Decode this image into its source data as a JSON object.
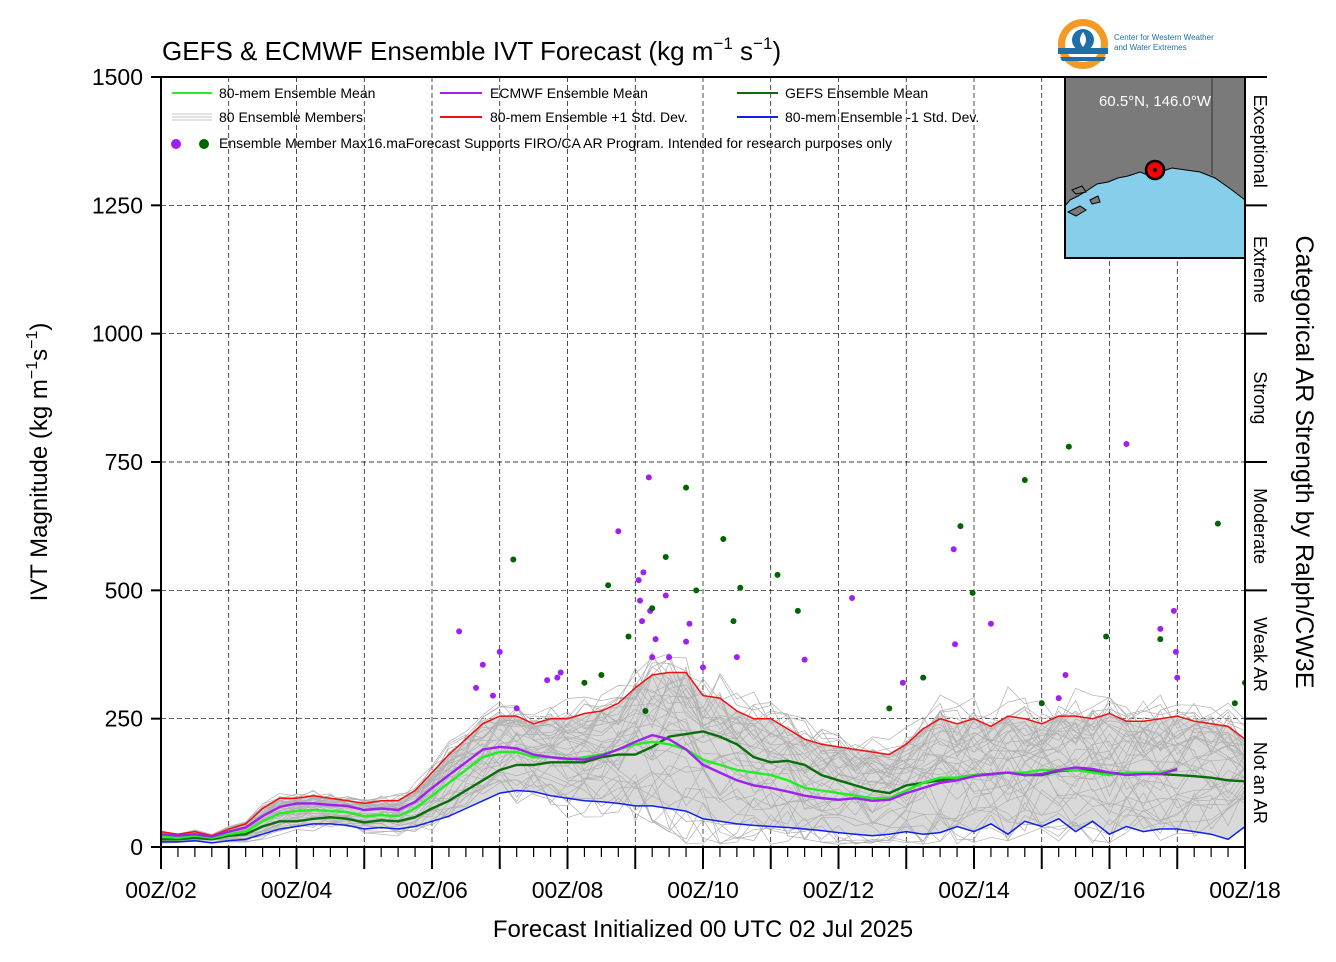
{
  "chart_data": {
    "type": "line",
    "title_main": "GEFS & ECMWF Ensemble IVT Forecast (kg m",
    "title_sup1": "−1",
    "title_mid": " s",
    "title_sup2": "−1",
    "title_end": ")",
    "ylabel_main": "IVT Magnitude (kg m",
    "ylabel_sup1": "−1",
    "ylabel_mid": "s",
    "ylabel_sup2": "−1",
    "ylabel_end": ")",
    "xlabel": "Forecast Initialized 00 UTC 02 Jul 2025",
    "right_label": "Categorical AR Strength by Ralph/CW3E",
    "ylim": [
      0,
      1500
    ],
    "xlim_days": [
      2,
      18
    ],
    "y_ticks": [
      0,
      250,
      500,
      750,
      1000,
      1250,
      1500
    ],
    "x_tick_labels": [
      "00Z/02",
      "00Z/04",
      "00Z/06",
      "00Z/08",
      "00Z/10",
      "00Z/12",
      "00Z/14",
      "00Z/16",
      "00Z/18"
    ],
    "x_tick_days": [
      2,
      4,
      6,
      8,
      10,
      12,
      14,
      16,
      18
    ],
    "grid": true,
    "legend_position": "top-left",
    "legend": {
      "ens_mean": "80-mem Ensemble Mean",
      "ecmwf_mean": "ECMWF Ensemble Mean",
      "gefs_mean": "GEFS Ensemble Mean",
      "members": "80 Ensemble Members",
      "plus_std": "80-mem Ensemble +1 Std. Dev.",
      "minus_std": "80-mem Ensemble -1 Std. Dev.",
      "max_note": "Ensemble Member Max16.maForecast Supports FIRO/CA AR Program. Intended for research purposes only"
    },
    "categories_ar": [
      {
        "label": "Not an AR",
        "range": [
          0,
          250
        ]
      },
      {
        "label": "Weak AR",
        "range": [
          250,
          500
        ]
      },
      {
        "label": "Moderate",
        "range": [
          500,
          750
        ]
      },
      {
        "label": "Strong",
        "range": [
          750,
          1000
        ]
      },
      {
        "label": "Extreme",
        "range": [
          1000,
          1250
        ]
      },
      {
        "label": "Exceptional",
        "range": [
          1250,
          1500
        ]
      }
    ],
    "location": "60.5°N, 146.0°W",
    "logo_text_1": "Center for Western Weather",
    "logo_text_2": "and Water Extremes",
    "colors": {
      "ens_mean": "#22ee22",
      "ecmwf_mean": "#a020f0",
      "gefs_mean": "#0a6e0a",
      "plus_std": "#ee1111",
      "minus_std": "#1020ee",
      "members": "#b0b0b0",
      "spread_fill": "#d9d9d9",
      "ecmwf_max": "#a020f0",
      "gefs_max": "#006400",
      "map_land": "#7a7a7a",
      "map_ocean": "#87ceeb"
    },
    "series": [
      {
        "name": "80-mem Ensemble +1 Std. Dev.",
        "key": "plus_std",
        "x": [
          2.0,
          2.25,
          2.5,
          2.75,
          3.0,
          3.25,
          3.5,
          3.75,
          4.0,
          4.25,
          4.5,
          4.75,
          5.0,
          5.25,
          5.5,
          5.75,
          6.0,
          6.25,
          6.5,
          6.75,
          7.0,
          7.25,
          7.5,
          7.75,
          8.0,
          8.25,
          8.5,
          8.75,
          9.0,
          9.25,
          9.5,
          9.75,
          10.0,
          10.25,
          10.5,
          10.75,
          11.0,
          11.25,
          11.5,
          11.75,
          12.0,
          12.25,
          12.5,
          12.75,
          13.0,
          13.25,
          13.5,
          13.75,
          14.0,
          14.25,
          14.5,
          14.75,
          15.0,
          15.25,
          15.5,
          15.75,
          16.0,
          16.25,
          16.5,
          16.75,
          17.0,
          17.25,
          17.5,
          17.75,
          18.0
        ],
        "y": [
          30,
          25,
          30,
          22,
          35,
          45,
          75,
          95,
          95,
          100,
          95,
          90,
          85,
          90,
          90,
          110,
          145,
          180,
          210,
          240,
          255,
          255,
          240,
          250,
          250,
          260,
          265,
          280,
          310,
          335,
          340,
          340,
          295,
          290,
          265,
          250,
          250,
          230,
          210,
          200,
          195,
          190,
          185,
          180,
          200,
          230,
          250,
          240,
          250,
          235,
          255,
          250,
          240,
          255,
          255,
          250,
          260,
          245,
          245,
          250,
          255,
          245,
          240,
          235,
          210
        ]
      },
      {
        "name": "80-mem Ensemble Mean",
        "key": "ens_mean",
        "x": [
          2.0,
          2.25,
          2.5,
          2.75,
          3.0,
          3.25,
          3.5,
          3.75,
          4.0,
          4.25,
          4.5,
          4.75,
          5.0,
          5.25,
          5.5,
          5.75,
          6.0,
          6.25,
          6.5,
          6.75,
          7.0,
          7.25,
          7.5,
          7.75,
          8.0,
          8.25,
          8.5,
          8.75,
          9.0,
          9.25,
          9.5,
          9.75,
          10.0,
          10.25,
          10.5,
          10.75,
          11.0,
          11.25,
          11.5,
          11.75,
          12.0,
          12.25,
          12.5,
          12.75,
          13.0,
          13.25,
          13.5,
          13.75,
          14.0,
          14.25,
          14.5,
          14.75,
          15.0,
          15.25,
          15.5,
          15.75,
          16.0,
          16.25,
          16.5,
          16.75,
          17.0
        ],
        "y": [
          20,
          18,
          22,
          18,
          25,
          30,
          50,
          65,
          70,
          72,
          70,
          68,
          60,
          62,
          60,
          75,
          100,
          125,
          150,
          175,
          185,
          185,
          175,
          175,
          170,
          175,
          180,
          190,
          200,
          205,
          200,
          190,
          170,
          160,
          150,
          145,
          140,
          130,
          115,
          110,
          105,
          100,
          95,
          95,
          110,
          125,
          135,
          135,
          140,
          140,
          145,
          145,
          150,
          150,
          150,
          145,
          140,
          145,
          145,
          145,
          150
        ]
      },
      {
        "name": "ECMWF Ensemble Mean",
        "key": "ecmwf_mean",
        "x": [
          2.0,
          2.25,
          2.5,
          2.75,
          3.0,
          3.25,
          3.5,
          3.75,
          4.0,
          4.25,
          4.5,
          4.75,
          5.0,
          5.25,
          5.5,
          5.75,
          6.0,
          6.25,
          6.5,
          6.75,
          7.0,
          7.25,
          7.5,
          7.75,
          8.0,
          8.25,
          8.5,
          8.75,
          9.0,
          9.25,
          9.5,
          9.75,
          10.0,
          10.25,
          10.5,
          10.75,
          11.0,
          11.25,
          11.5,
          11.75,
          12.0,
          12.25,
          12.5,
          12.75,
          13.0,
          13.25,
          13.5,
          13.75,
          14.0,
          14.25,
          14.5,
          14.75,
          15.0,
          15.25,
          15.5,
          15.75,
          16.0,
          16.25,
          16.5,
          16.75,
          17.0
        ],
        "y": [
          25,
          22,
          25,
          20,
          30,
          38,
          60,
          78,
          85,
          85,
          82,
          80,
          72,
          75,
          72,
          88,
          115,
          140,
          165,
          190,
          195,
          192,
          180,
          175,
          172,
          170,
          178,
          190,
          205,
          218,
          210,
          190,
          160,
          145,
          130,
          120,
          115,
          108,
          100,
          95,
          92,
          95,
          90,
          92,
          105,
          115,
          125,
          130,
          138,
          142,
          145,
          140,
          142,
          150,
          155,
          152,
          145,
          140,
          142,
          142,
          152
        ]
      },
      {
        "name": "GEFS Ensemble Mean",
        "key": "gefs_mean",
        "x": [
          2.0,
          2.25,
          2.5,
          2.75,
          3.0,
          3.25,
          3.5,
          3.75,
          4.0,
          4.25,
          4.5,
          4.75,
          5.0,
          5.25,
          5.5,
          5.75,
          6.0,
          6.25,
          6.5,
          6.75,
          7.0,
          7.25,
          7.5,
          7.75,
          8.0,
          8.25,
          8.5,
          8.75,
          9.0,
          9.25,
          9.5,
          9.75,
          10.0,
          10.25,
          10.5,
          10.75,
          11.0,
          11.25,
          11.5,
          11.75,
          12.0,
          12.25,
          12.5,
          12.75,
          13.0,
          13.25,
          13.5,
          13.75,
          14.0,
          14.25,
          14.5,
          14.75,
          15.0,
          15.25,
          15.5,
          15.75,
          16.0,
          16.25,
          16.5,
          16.75,
          17.0,
          17.25,
          17.5,
          17.75,
          18.0
        ],
        "y": [
          15,
          15,
          18,
          15,
          22,
          25,
          40,
          50,
          50,
          55,
          58,
          55,
          48,
          52,
          50,
          58,
          75,
          90,
          110,
          130,
          150,
          160,
          160,
          165,
          165,
          165,
          175,
          180,
          180,
          195,
          215,
          220,
          225,
          215,
          200,
          175,
          165,
          168,
          160,
          140,
          130,
          120,
          110,
          105,
          120,
          125,
          130,
          135,
          140,
          142,
          145,
          140,
          140,
          148,
          150,
          148,
          145,
          142,
          145,
          142,
          140,
          138,
          135,
          130,
          128
        ]
      },
      {
        "name": "80-mem Ensemble -1 Std. Dev.",
        "key": "minus_std",
        "x": [
          2.0,
          2.25,
          2.5,
          2.75,
          3.0,
          3.25,
          3.5,
          3.75,
          4.0,
          4.25,
          4.5,
          4.75,
          5.0,
          5.25,
          5.5,
          5.75,
          6.0,
          6.25,
          6.5,
          6.75,
          7.0,
          7.25,
          7.5,
          7.75,
          8.0,
          8.25,
          8.5,
          8.75,
          9.0,
          9.25,
          9.5,
          9.75,
          10.0,
          10.25,
          10.5,
          10.75,
          11.0,
          11.25,
          11.5,
          11.75,
          12.0,
          12.25,
          12.5,
          12.75,
          13.0,
          13.25,
          13.5,
          13.75,
          14.0,
          14.25,
          14.5,
          14.75,
          15.0,
          15.25,
          15.5,
          15.75,
          16.0,
          16.25,
          16.5,
          16.75,
          17.0,
          17.25,
          17.5,
          17.75,
          18.0
        ],
        "y": [
          10,
          10,
          12,
          8,
          12,
          15,
          25,
          35,
          40,
          45,
          45,
          42,
          35,
          38,
          35,
          40,
          50,
          60,
          75,
          90,
          105,
          110,
          108,
          100,
          95,
          90,
          88,
          85,
          80,
          80,
          75,
          70,
          55,
          50,
          45,
          42,
          40,
          38,
          35,
          32,
          28,
          25,
          22,
          25,
          30,
          25,
          28,
          40,
          30,
          45,
          25,
          50,
          40,
          55,
          30,
          50,
          25,
          40,
          30,
          35,
          35,
          30,
          25,
          15,
          40
        ]
      }
    ],
    "ecmwf_max_points": {
      "x": [
        6.4,
        6.65,
        6.75,
        6.9,
        7.0,
        7.25,
        7.7,
        7.85,
        7.9,
        8.75,
        9.05,
        9.07,
        9.1,
        9.12,
        9.2,
        9.22,
        9.25,
        9.3,
        9.45,
        9.5,
        9.75,
        9.8,
        10.0,
        10.5,
        11.5,
        12.2,
        12.95,
        13.7,
        13.72,
        14.25,
        15.25,
        15.35,
        16.25,
        16.75,
        16.95,
        16.98,
        17.0
      ],
      "y": [
        420,
        310,
        355,
        295,
        380,
        270,
        325,
        330,
        340,
        615,
        520,
        480,
        440,
        535,
        720,
        460,
        370,
        405,
        490,
        370,
        400,
        435,
        350,
        370,
        365,
        485,
        320,
        580,
        395,
        435,
        290,
        335,
        785,
        425,
        460,
        380,
        330
      ]
    },
    "gefs_max_points": {
      "x": [
        7.2,
        8.25,
        8.5,
        8.6,
        8.9,
        9.15,
        9.25,
        9.45,
        9.75,
        9.9,
        10.3,
        10.45,
        10.55,
        11.1,
        11.4,
        12.75,
        13.25,
        13.8,
        13.98,
        14.75,
        15.0,
        15.4,
        15.95,
        16.75,
        17.6,
        17.85,
        18.0
      ],
      "y": [
        560,
        320,
        335,
        510,
        410,
        265,
        465,
        565,
        700,
        500,
        600,
        440,
        505,
        530,
        460,
        270,
        330,
        625,
        495,
        715,
        280,
        780,
        410,
        405,
        630,
        280,
        320
      ]
    }
  }
}
